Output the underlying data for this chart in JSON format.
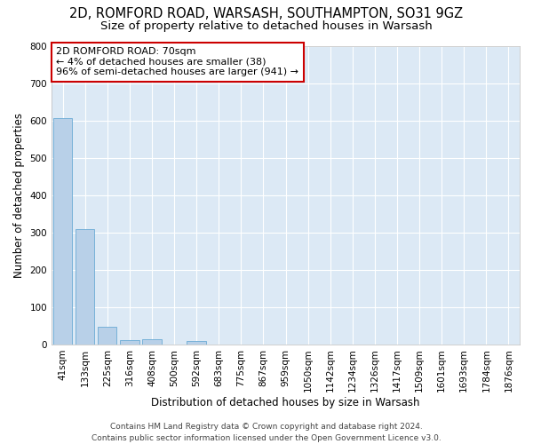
{
  "title_line1": "2D, ROMFORD ROAD, WARSASH, SOUTHAMPTON, SO31 9GZ",
  "title_line2": "Size of property relative to detached houses in Warsash",
  "xlabel": "Distribution of detached houses by size in Warsash",
  "ylabel": "Number of detached properties",
  "bar_color": "#b8d0e8",
  "bar_edge_color": "#6aaad4",
  "background_color": "#dce9f5",
  "fig_background_color": "#ffffff",
  "categories": [
    "41sqm",
    "133sqm",
    "225sqm",
    "316sqm",
    "408sqm",
    "500sqm",
    "592sqm",
    "683sqm",
    "775sqm",
    "867sqm",
    "959sqm",
    "1050sqm",
    "1142sqm",
    "1234sqm",
    "1326sqm",
    "1417sqm",
    "1509sqm",
    "1601sqm",
    "1693sqm",
    "1784sqm",
    "1876sqm"
  ],
  "values": [
    607,
    310,
    48,
    11,
    13,
    0,
    8,
    0,
    0,
    0,
    0,
    0,
    0,
    0,
    0,
    0,
    0,
    0,
    0,
    0,
    0
  ],
  "ylim": [
    0,
    800
  ],
  "yticks": [
    0,
    100,
    200,
    300,
    400,
    500,
    600,
    700,
    800
  ],
  "annotation_text": "2D ROMFORD ROAD: 70sqm\n← 4% of detached houses are smaller (38)\n96% of semi-detached houses are larger (941) →",
  "annotation_box_color": "#ffffff",
  "annotation_box_edge_color": "#cc0000",
  "footer_line1": "Contains HM Land Registry data © Crown copyright and database right 2024.",
  "footer_line2": "Contains public sector information licensed under the Open Government Licence v3.0.",
  "grid_color": "#ffffff",
  "title_fontsize": 10.5,
  "subtitle_fontsize": 9.5,
  "axis_label_fontsize": 8.5,
  "tick_fontsize": 7.5,
  "footer_fontsize": 6.5,
  "annotation_fontsize": 8
}
